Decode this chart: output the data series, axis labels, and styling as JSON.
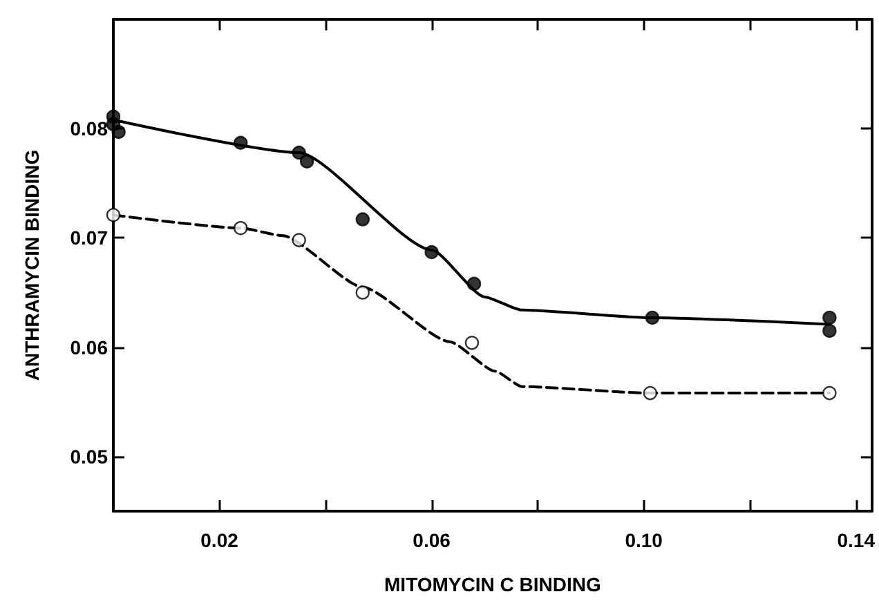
{
  "chart_data": {
    "type": "scatter",
    "xlabel": "MITOMYCIN C BINDING",
    "ylabel": "ANTHRAMYCIN BINDING",
    "xlim": [
      0,
      0.143
    ],
    "ylim": [
      0.045,
      0.09
    ],
    "xticks": [
      0.02,
      {
        "value": 0.04,
        "label": null
      },
      0.06,
      {
        "value": 0.08,
        "label": null
      },
      {
        "value": 0.1,
        "label": "0.10"
      },
      {
        "value": 0.12,
        "label": null
      },
      0.14
    ],
    "yticks": [
      0.05,
      0.06,
      0.07,
      0.08
    ],
    "grid": false,
    "marker": "circle",
    "series": [
      {
        "color": "#000000",
        "x": [
          0,
          0,
          0.001,
          0.024,
          0.035,
          0.0365,
          0.047,
          0.06,
          0.068,
          0.1016,
          0.135,
          0.135
        ],
        "values": [
          0.0811,
          0.0804,
          0.0797,
          0.0787,
          0.0778,
          0.077,
          0.0717,
          0.0687,
          0.0658,
          0.0627,
          0.0627,
          0.0615
        ]
      },
      {
        "color": "#ffffff",
        "x": [
          0,
          0.024,
          0.035,
          0.047,
          0.0676,
          0.1012,
          0.135
        ],
        "values": [
          0.0721,
          0.0709,
          0.0698,
          0.065,
          0.0604,
          0.0558,
          0.0558
        ]
      },
      {
        "type": "line",
        "color": "#000000",
        "line_style": "solid",
        "marker": "none",
        "x": [
          0,
          0.035,
          0.06,
          0.07,
          0.077,
          0.1016,
          0.135
        ],
        "values": [
          0.0808,
          0.0778,
          0.0689,
          0.0646,
          0.0634,
          0.0627,
          0.0621
        ]
      },
      {
        "type": "line",
        "color": "#000000",
        "line_style": "dashed",
        "marker": "none",
        "x": [
          0,
          0.024,
          0.032,
          0.047,
          0.0634,
          0.072,
          0.077,
          0.1012,
          0.135
        ],
        "values": [
          0.0721,
          0.0709,
          0.0702,
          0.0655,
          0.0605,
          0.0578,
          0.0564,
          0.0558,
          0.0558
        ]
      }
    ]
  }
}
